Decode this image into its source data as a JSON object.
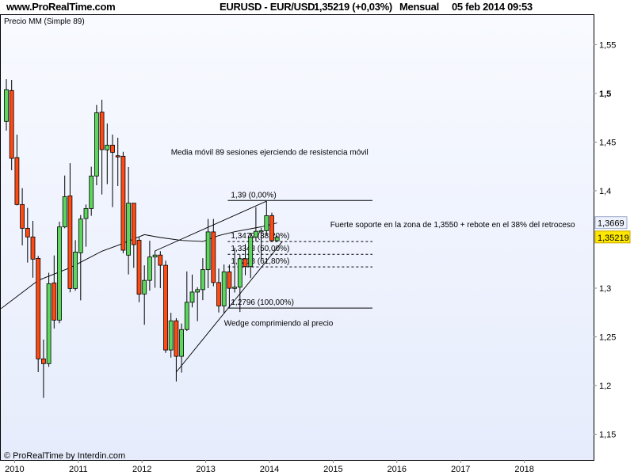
{
  "header": {
    "site": "www.ProRealTime.com",
    "instrument": "EURUSD - EUR/USD",
    "price": "1,35219 (+0,03%)",
    "period": "Mensual",
    "datetime": "05 feb 2014 09:53"
  },
  "panel_label": "Precio MM (Simple 89)",
  "footer": "© ProRealTime by Interdin.com",
  "colors": {
    "up": "#5cd65c",
    "down": "#ff4a14",
    "background": "#eef2fd",
    "last_price_tag": "#ffe800"
  },
  "chart_data": {
    "type": "candlestick",
    "ylim": [
      1.13,
      1.58
    ],
    "y_ticks": [
      "1,15",
      "1,2",
      "1,25",
      "1,3",
      "1,4",
      "1,45",
      "1,5",
      "1,55"
    ],
    "y_tick_values": [
      1.15,
      1.2,
      1.25,
      1.3,
      1.4,
      1.45,
      1.5,
      1.55
    ],
    "x_ticks": [
      "2010",
      "2011",
      "2012",
      "2013",
      "2014",
      "2015",
      "2016",
      "2017",
      "2018"
    ],
    "xlim": [
      "2009-11",
      "2018-12"
    ],
    "grid": false,
    "candles": [
      [
        "2009-11",
        1.4713,
        1.5146,
        1.4618,
        1.5038
      ],
      [
        "2009-12",
        1.503,
        1.5138,
        1.4211,
        1.4333
      ],
      [
        "2010-01",
        1.4341,
        1.4577,
        1.385,
        1.3859
      ],
      [
        "2010-02",
        1.3859,
        1.4027,
        1.3439,
        1.3615
      ],
      [
        "2010-03",
        1.3615,
        1.3824,
        1.3263,
        1.3526
      ],
      [
        "2010-04",
        1.3526,
        1.3691,
        1.3108,
        1.3298
      ],
      [
        "2010-05",
        1.3306,
        1.3331,
        1.2138,
        1.2274
      ],
      [
        "2010-06",
        1.2274,
        1.2472,
        1.1873,
        1.2225
      ],
      [
        "2010-07",
        1.2225,
        1.3158,
        1.2192,
        1.3046
      ],
      [
        "2010-08",
        1.3054,
        1.3336,
        1.2585,
        1.2672
      ],
      [
        "2010-09",
        1.2672,
        1.3683,
        1.264,
        1.3629
      ],
      [
        "2010-10",
        1.3629,
        1.4157,
        1.3615,
        1.394
      ],
      [
        "2010-11",
        1.3948,
        1.4284,
        1.2957,
        1.2997
      ],
      [
        "2010-12",
        1.2997,
        1.3493,
        1.2973,
        1.3371
      ],
      [
        "2011-01",
        1.3363,
        1.3751,
        1.2875,
        1.371
      ],
      [
        "2011-02",
        1.3715,
        1.3859,
        1.3426,
        1.3818
      ],
      [
        "2011-03",
        1.3818,
        1.4247,
        1.3743,
        1.4152
      ],
      [
        "2011-04",
        1.4152,
        1.4881,
        1.4057,
        1.4802
      ],
      [
        "2011-05",
        1.4808,
        1.4935,
        1.3962,
        1.4423
      ],
      [
        "2011-06",
        1.442,
        1.4691,
        1.4068,
        1.4469
      ],
      [
        "2011-07",
        1.4469,
        1.4577,
        1.3832,
        1.4395
      ],
      [
        "2011-08",
        1.436,
        1.4545,
        1.4049,
        1.4355
      ],
      [
        "2011-09",
        1.4355,
        1.44,
        1.3358,
        1.339
      ],
      [
        "2011-10",
        1.3339,
        1.4244,
        1.3141,
        1.3873
      ],
      [
        "2011-11",
        1.3873,
        1.3873,
        1.3209,
        1.3447
      ],
      [
        "2011-12",
        1.3493,
        1.352,
        1.2856,
        1.2938
      ],
      [
        "2012-01",
        1.294,
        1.3234,
        1.2624,
        1.308
      ],
      [
        "2012-02",
        1.308,
        1.3487,
        1.2975,
        1.332
      ],
      [
        "2012-03",
        1.332,
        1.3385,
        1.3004,
        1.334
      ],
      [
        "2012-04",
        1.334,
        1.338,
        1.3,
        1.3235
      ],
      [
        "2012-05",
        1.3235,
        1.3283,
        1.2335,
        1.2365
      ],
      [
        "2012-06",
        1.2365,
        1.2747,
        1.2287,
        1.2665
      ],
      [
        "2012-07",
        1.2665,
        1.2692,
        1.2042,
        1.23
      ],
      [
        "2012-08",
        1.23,
        1.2637,
        1.2133,
        1.2575
      ],
      [
        "2012-09",
        1.2575,
        1.3172,
        1.256,
        1.2855
      ],
      [
        "2012-10",
        1.2855,
        1.3139,
        1.2803,
        1.296
      ],
      [
        "2012-11",
        1.296,
        1.301,
        1.2661,
        1.2985
      ],
      [
        "2012-12",
        1.2985,
        1.3308,
        1.2877,
        1.319
      ],
      [
        "2013-01",
        1.319,
        1.3711,
        1.3,
        1.3578
      ],
      [
        "2013-02",
        1.3578,
        1.3711,
        1.3019,
        1.3058
      ],
      [
        "2013-03",
        1.3058,
        1.3201,
        1.275,
        1.2818
      ],
      [
        "2013-04",
        1.2818,
        1.3243,
        1.2745,
        1.3168
      ],
      [
        "2013-05",
        1.3168,
        1.3242,
        1.2796,
        1.2999
      ],
      [
        "2013-06",
        1.2999,
        1.3416,
        1.2955,
        1.301
      ],
      [
        "2013-07",
        1.301,
        1.3345,
        1.2755,
        1.3302
      ],
      [
        "2013-08",
        1.3302,
        1.3452,
        1.3132,
        1.3222
      ],
      [
        "2013-09",
        1.3222,
        1.3569,
        1.3104,
        1.3524
      ],
      [
        "2013-10",
        1.3524,
        1.3832,
        1.348,
        1.3584
      ],
      [
        "2013-11",
        1.3584,
        1.362,
        1.3295,
        1.359
      ],
      [
        "2013-12",
        1.359,
        1.3893,
        1.3543,
        1.3745
      ],
      [
        "2014-01",
        1.3745,
        1.3775,
        1.3477,
        1.3488
      ],
      [
        "2014-02",
        1.3488,
        1.354,
        1.3476,
        1.3522
      ]
    ],
    "candle_fields": [
      "date",
      "open",
      "high",
      "low",
      "close"
    ],
    "moving_average": {
      "name": "MM (Simple 89)",
      "points": [
        [
          "2009-10",
          1.279
        ],
        [
          "2010-05",
          1.308
        ],
        [
          "2010-11",
          1.321
        ],
        [
          "2011-05",
          1.338
        ],
        [
          "2011-08",
          1.344
        ],
        [
          "2012-01",
          1.355
        ],
        [
          "2012-04",
          1.352
        ],
        [
          "2012-08",
          1.349
        ],
        [
          "2012-12",
          1.348
        ],
        [
          "2013-03",
          1.354
        ],
        [
          "2013-06",
          1.358
        ],
        [
          "2013-11",
          1.363
        ],
        [
          "2014-02",
          1.367
        ]
      ]
    },
    "price_tags": [
      {
        "label": "1,3669",
        "value": 1.3669,
        "kind": "ma"
      },
      {
        "label": "1,35219",
        "value": 1.35219,
        "kind": "last"
      }
    ],
    "fibonacci": {
      "from": "2013-05",
      "to": "2014-08",
      "levels": [
        {
          "label": "1,39 (0,00%)",
          "value": 1.39,
          "style": "solid"
        },
        {
          "label": "1,3479 (38,20%)",
          "value": 1.3479,
          "style": "dashed"
        },
        {
          "label": "1,3348 (50,00%)",
          "value": 1.3348,
          "style": "dashed"
        },
        {
          "label": "1,3218 (61,80%)",
          "value": 1.3218,
          "style": "dashed"
        },
        {
          "label": "1,2796 (100,00%)",
          "value": 1.2796,
          "style": "solid"
        }
      ]
    },
    "trendlines": [
      {
        "from": [
          "2012-03",
          1.3382
        ],
        "to": [
          "2013-12",
          1.3894
        ]
      },
      {
        "from": [
          "2012-07",
          1.2138
        ],
        "to": [
          "2014-03",
          1.348
        ]
      }
    ],
    "annotations": [
      {
        "text": "Media móvil 89 sesiones ejerciendo de resistencia móvil",
        "date": "2012-06",
        "value": 1.437
      },
      {
        "text": "Fuerte soporte en la zona de 1,3550 + rebote en el 38% del retroceso",
        "date": "2014-12",
        "value": 1.3625
      },
      {
        "text": "Wedge comprimiendo al precio",
        "date": "2013-04",
        "value": 1.2615
      }
    ]
  }
}
